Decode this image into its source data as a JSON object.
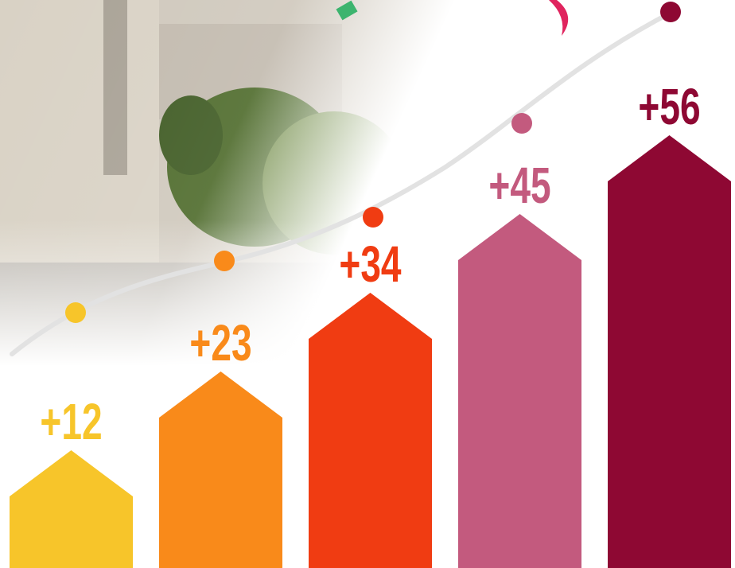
{
  "chart_data": {
    "type": "arrow-bar",
    "values": [
      12,
      23,
      34,
      45,
      56
    ],
    "value_labels": [
      "+12",
      "+23",
      "+34",
      "+45",
      "+56"
    ],
    "colors": [
      "#f7c52a",
      "#f98a1a",
      "#f03c12",
      "#c35a7e",
      "#8e0833"
    ]
  }
}
